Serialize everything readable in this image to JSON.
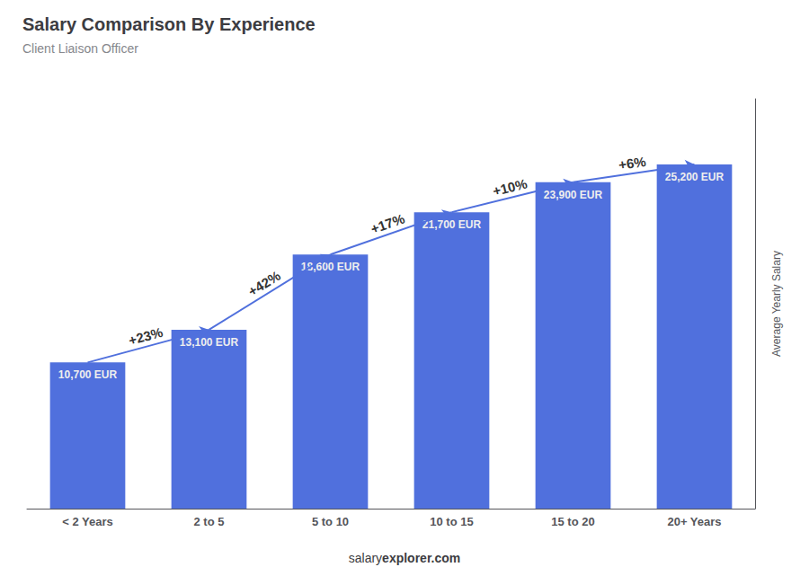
{
  "chart_data": {
    "type": "bar",
    "title": "Salary Comparison By Experience",
    "subtitle": "Client Liaison Officer",
    "ylabel": "Average Yearly Salary",
    "categories": [
      "< 2 Years",
      "2 to 5",
      "5 to 10",
      "10 to 15",
      "15 to 20",
      "20+ Years"
    ],
    "values": [
      10700,
      13100,
      18600,
      21700,
      23900,
      25200
    ],
    "value_labels": [
      "10,700 EUR",
      "13,100 EUR",
      "18,600 EUR",
      "21,700 EUR",
      "23,900 EUR",
      "25,200 EUR"
    ],
    "data_labels": true,
    "annotations": [
      "+23%",
      "+42%",
      "+17%",
      "+10%",
      "+6%"
    ],
    "footer": [
      "salary",
      "explorer.com"
    ],
    "ylim": [
      0,
      30000
    ],
    "tick_labels": "x",
    "grid": false
  }
}
